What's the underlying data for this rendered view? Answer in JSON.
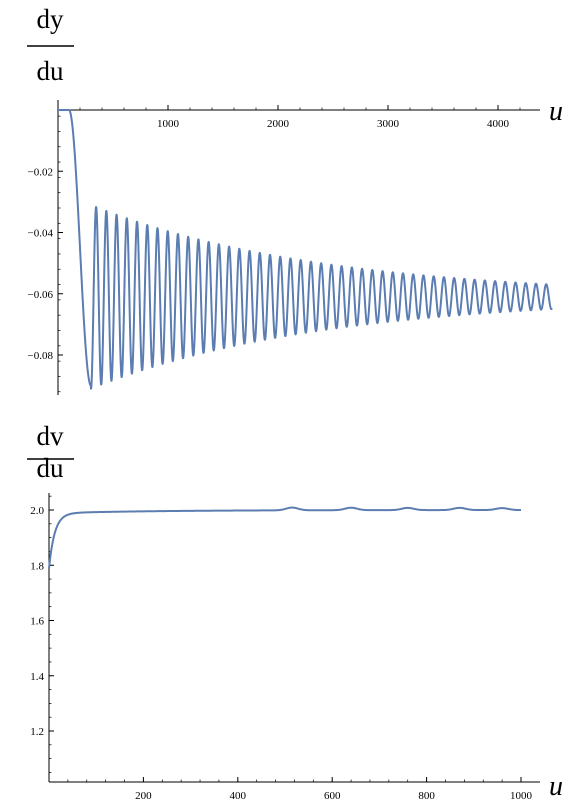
{
  "chart_data": [
    {
      "type": "line",
      "ylabel": {
        "numerator": "dy",
        "denominator": "du"
      },
      "xlabel": "u",
      "xlim": [
        0,
        4550
      ],
      "ylim": [
        -0.092,
        0.0
      ],
      "xticks": [
        1000,
        2000,
        3000,
        4000
      ],
      "xtick_labels": [
        "1000",
        "2000",
        "3000",
        "4000"
      ],
      "yticks": [
        -0.02,
        -0.04,
        -0.06,
        -0.08
      ],
      "ytick_labels": [
        "-0.02",
        "-0.04",
        "-0.06",
        "-0.08"
      ],
      "grid": false,
      "series": [
        {
          "color": "#5b7db1",
          "model": {
            "flat_until": 100,
            "drop_end": 300,
            "first_min": -0.09,
            "equilibrium": -0.061,
            "initial_amplitude": 0.03,
            "final_amplitude": 0.004,
            "period": 93,
            "x_end": 4490
          }
        }
      ]
    },
    {
      "type": "line",
      "ylabel": {
        "numerator": "dv",
        "denominator": "du"
      },
      "xlabel": "u",
      "xlim": [
        0,
        1025
      ],
      "ylim": [
        1.0,
        2.06
      ],
      "xticks": [
        200,
        400,
        600,
        800,
        1000
      ],
      "xtick_labels": [
        "200",
        "400",
        "600",
        "800",
        "1000"
      ],
      "yticks": [
        1.2,
        1.4,
        1.6,
        1.8,
        2.0
      ],
      "ytick_labels": [
        "1.2",
        "1.4",
        "1.6",
        "1.8",
        "2.0"
      ],
      "grid": false,
      "series": [
        {
          "color": "#5b7db1",
          "model": {
            "start_value": 1.8,
            "saturation": 2.0,
            "x_end": 1000,
            "wiggles": [
              {
                "center": 515,
                "height": 0.01
              },
              {
                "center": 640,
                "height": 0.009
              },
              {
                "center": 760,
                "height": 0.008
              },
              {
                "center": 870,
                "height": 0.008
              },
              {
                "center": 960,
                "height": 0.007
              }
            ]
          }
        }
      ]
    }
  ]
}
